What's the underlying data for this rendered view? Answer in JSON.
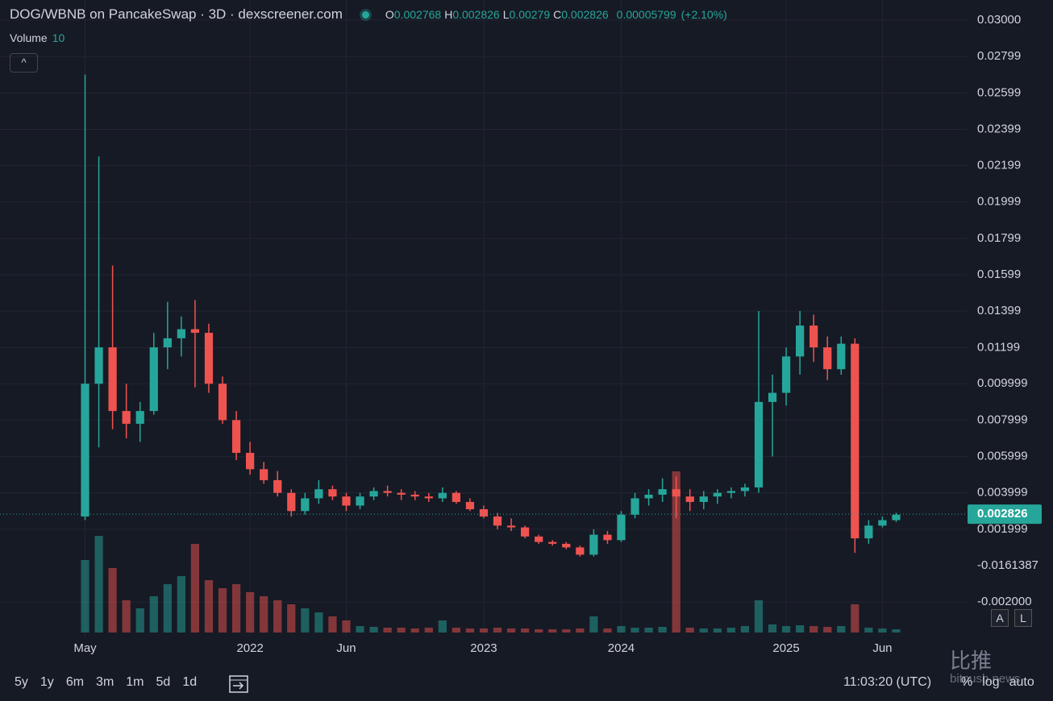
{
  "chart_data": {
    "type": "candlestick",
    "title": "DOG/WBNB on PancakeSwap · 3D · dexscreener.com",
    "ohlc": [
      {
        "label": "O",
        "value": 0.002768
      },
      {
        "label": "H",
        "value": 0.002826
      },
      {
        "label": "L",
        "value": 0.00279
      },
      {
        "label": "C",
        "value": 0.002826
      }
    ],
    "change": "0.00005799",
    "change_pct": "(+2.10%)",
    "volume_label": "Volume",
    "volume_setting": "10",
    "last_price": 0.002826,
    "up_color": "#26a69a",
    "down_color": "#ef5350",
    "grid": true,
    "ylim": [
      -0.0039,
      0.0311
    ],
    "yticks": [
      {
        "value": 0.03,
        "label": "0.03000"
      },
      0.02799,
      0.02599,
      0.02399,
      0.02199,
      0.01999,
      0.01799,
      0.01599,
      0.01399,
      0.01199,
      0.009999,
      0.007999,
      0.005999,
      0.003999,
      0.001999,
      {
        "value": -0.002,
        "label": "-0.002000"
      }
    ],
    "annotations": [
      "-0.0161387"
    ],
    "categories": [
      "May",
      null,
      null,
      null,
      null,
      null,
      null,
      null,
      null,
      null,
      null,
      null,
      "2022",
      null,
      null,
      null,
      null,
      null,
      null,
      "Jun",
      null,
      null,
      null,
      null,
      null,
      null,
      null,
      null,
      null,
      "2023",
      null,
      null,
      null,
      null,
      null,
      null,
      null,
      null,
      null,
      "2024",
      null,
      null,
      null,
      null,
      null,
      null,
      null,
      null,
      null,
      null,
      null,
      "2025",
      null,
      null,
      null,
      null,
      null,
      null,
      "Jun",
      null
    ],
    "open": [
      0.0027,
      0.01,
      0.012,
      0.0085,
      0.0078,
      0.0085,
      0.012,
      0.0125,
      0.013,
      0.0128,
      0.01,
      0.008,
      0.0062,
      0.0053,
      0.0047,
      0.004,
      0.003,
      0.0037,
      0.0042,
      0.0038,
      0.0033,
      0.0038,
      0.0041,
      0.004,
      0.0039,
      0.0038,
      0.0037,
      0.004,
      0.0035,
      0.0031,
      0.0027,
      0.0022,
      0.0021,
      0.0016,
      0.0013,
      0.0012,
      0.001,
      0.0006,
      0.0017,
      0.0014,
      0.0028,
      0.0037,
      0.0039,
      0.0042,
      0.0038,
      0.0035,
      0.0038,
      0.004,
      0.0041,
      0.0043,
      0.009,
      0.0095,
      0.0115,
      0.0132,
      0.012,
      0.0108,
      0.0122,
      0.0015,
      0.0022,
      0.0025
    ],
    "high": [
      0.027,
      0.0225,
      0.0165,
      0.01,
      0.009,
      0.0128,
      0.0145,
      0.0137,
      0.0146,
      0.0133,
      0.0104,
      0.0085,
      0.0068,
      0.0057,
      0.0052,
      0.0042,
      0.004,
      0.0047,
      0.0044,
      0.004,
      0.004,
      0.0043,
      0.0044,
      0.0042,
      0.0041,
      0.004,
      0.0043,
      0.0041,
      0.0037,
      0.0033,
      0.0029,
      0.0026,
      0.0022,
      0.0017,
      0.0014,
      0.0013,
      0.0011,
      0.002,
      0.0019,
      0.003,
      0.004,
      0.0042,
      0.0048,
      0.0049,
      0.0042,
      0.0041,
      0.0042,
      0.0043,
      0.0045,
      0.014,
      0.0105,
      0.012,
      0.014,
      0.0138,
      0.0126,
      0.0126,
      0.0125,
      0.0025,
      0.0027,
      0.0029
    ],
    "low": [
      0.0025,
      0.0065,
      0.0075,
      0.007,
      0.0068,
      0.0083,
      0.0108,
      0.0115,
      0.0098,
      0.0095,
      0.0078,
      0.0058,
      0.005,
      0.0045,
      0.0038,
      0.0027,
      0.0028,
      0.0034,
      0.0036,
      0.003,
      0.0031,
      0.0036,
      0.0038,
      0.0036,
      0.0036,
      0.0035,
      0.0035,
      0.0034,
      0.003,
      0.0026,
      0.002,
      0.0019,
      0.0015,
      0.0012,
      0.0011,
      0.0009,
      0.0005,
      0.0005,
      0.0012,
      0.0013,
      0.0026,
      0.0033,
      0.0035,
      0.0026,
      0.003,
      0.0031,
      0.0034,
      0.0037,
      0.0038,
      0.004,
      0.006,
      0.0088,
      0.0105,
      0.0112,
      0.0102,
      0.0105,
      0.0007,
      0.0012,
      0.0021,
      0.0024
    ],
    "close": [
      0.01,
      0.012,
      0.0085,
      0.0078,
      0.0085,
      0.012,
      0.0125,
      0.013,
      0.0128,
      0.01,
      0.008,
      0.0062,
      0.0053,
      0.0047,
      0.004,
      0.003,
      0.0037,
      0.0042,
      0.0038,
      0.0033,
      0.0038,
      0.0041,
      0.004,
      0.0039,
      0.0038,
      0.0037,
      0.004,
      0.0035,
      0.0031,
      0.0027,
      0.0022,
      0.0021,
      0.0016,
      0.0013,
      0.0012,
      0.001,
      0.0006,
      0.0017,
      0.0014,
      0.0028,
      0.0037,
      0.0039,
      0.0042,
      0.0038,
      0.0035,
      0.0038,
      0.004,
      0.0041,
      0.0043,
      0.009,
      0.0095,
      0.0115,
      0.0132,
      0.012,
      0.0108,
      0.0122,
      0.0015,
      0.0022,
      0.0025,
      0.0028
    ],
    "volume": [
      90,
      120,
      80,
      40,
      30,
      45,
      60,
      70,
      110,
      65,
      55,
      60,
      50,
      45,
      40,
      35,
      30,
      25,
      20,
      15,
      8,
      7,
      6,
      6,
      5,
      6,
      15,
      6,
      5,
      5,
      6,
      5,
      5,
      4,
      4,
      4,
      5,
      20,
      5,
      8,
      6,
      6,
      7,
      200,
      6,
      5,
      5,
      6,
      8,
      40,
      10,
      8,
      9,
      8,
      7,
      8,
      35,
      6,
      5,
      4
    ],
    "time": "11:03:20 (UTC)",
    "timeframes": [
      "5y",
      "1y",
      "6m",
      "3m",
      "1m",
      "5d",
      "1d"
    ],
    "scale_options": [
      "%",
      "log",
      "auto"
    ],
    "buttons": [
      "A",
      "L"
    ],
    "watermark": [
      "比推",
      "bitpush.news"
    ]
  }
}
